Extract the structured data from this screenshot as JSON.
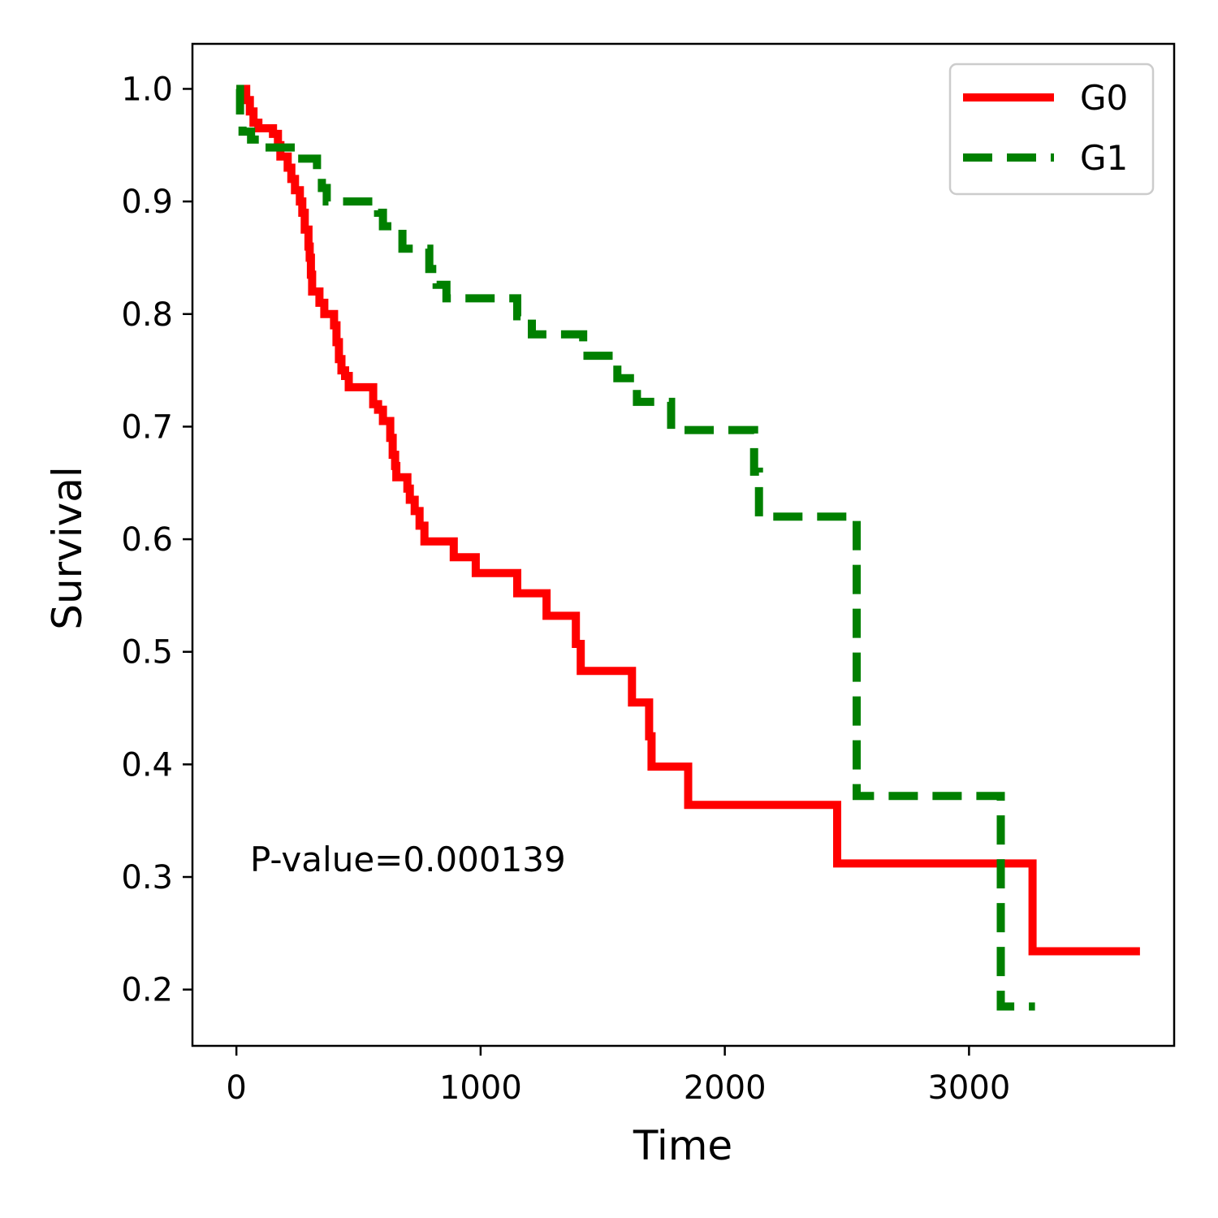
{
  "chart_data": {
    "type": "line",
    "title": "",
    "xlabel": "Time",
    "ylabel": "Survival",
    "xlim": [
      -180,
      3840
    ],
    "ylim": [
      0.15,
      1.04
    ],
    "x_ticks": [
      0,
      1000,
      2000,
      3000
    ],
    "x_tick_labels": [
      "0",
      "1000",
      "2000",
      "3000"
    ],
    "y_ticks": [
      0.2,
      0.3,
      0.4,
      0.5,
      0.6,
      0.7,
      0.8,
      0.9,
      1.0
    ],
    "y_tick_labels": [
      "0.2",
      "0.3",
      "0.4",
      "0.5",
      "0.6",
      "0.7",
      "0.8",
      "0.9",
      "1.0"
    ],
    "grid": false,
    "legend_position": "top-right",
    "annotation": "P-value=0.000139",
    "series": [
      {
        "name": "G0",
        "color": "#ff0000",
        "dashed": false,
        "steps": [
          [
            0,
            1.0
          ],
          [
            40,
            0.99
          ],
          [
            55,
            0.98
          ],
          [
            70,
            0.97
          ],
          [
            90,
            0.965
          ],
          [
            150,
            0.96
          ],
          [
            170,
            0.95
          ],
          [
            180,
            0.94
          ],
          [
            210,
            0.93
          ],
          [
            225,
            0.92
          ],
          [
            240,
            0.91
          ],
          [
            260,
            0.9
          ],
          [
            270,
            0.89
          ],
          [
            280,
            0.875
          ],
          [
            295,
            0.86
          ],
          [
            300,
            0.85
          ],
          [
            305,
            0.835
          ],
          [
            310,
            0.82
          ],
          [
            340,
            0.81
          ],
          [
            360,
            0.8
          ],
          [
            400,
            0.79
          ],
          [
            410,
            0.775
          ],
          [
            420,
            0.76
          ],
          [
            430,
            0.75
          ],
          [
            445,
            0.745
          ],
          [
            460,
            0.735
          ],
          [
            560,
            0.72
          ],
          [
            580,
            0.715
          ],
          [
            600,
            0.705
          ],
          [
            630,
            0.69
          ],
          [
            640,
            0.675
          ],
          [
            650,
            0.665
          ],
          [
            655,
            0.655
          ],
          [
            700,
            0.645
          ],
          [
            710,
            0.635
          ],
          [
            730,
            0.625
          ],
          [
            750,
            0.612
          ],
          [
            770,
            0.598
          ],
          [
            890,
            0.584
          ],
          [
            980,
            0.57
          ],
          [
            1150,
            0.552
          ],
          [
            1270,
            0.532
          ],
          [
            1390,
            0.507
          ],
          [
            1410,
            0.483
          ],
          [
            1620,
            0.455
          ],
          [
            1690,
            0.425
          ],
          [
            1700,
            0.398
          ],
          [
            1850,
            0.364
          ],
          [
            2460,
            0.312
          ],
          [
            3260,
            0.234
          ],
          [
            3700,
            0.234
          ]
        ]
      },
      {
        "name": "G1",
        "color": "#008000",
        "dashed": true,
        "steps": [
          [
            0,
            1.0
          ],
          [
            15,
            0.975
          ],
          [
            25,
            0.962
          ],
          [
            60,
            0.955
          ],
          [
            100,
            0.948
          ],
          [
            240,
            0.938
          ],
          [
            330,
            0.925
          ],
          [
            350,
            0.912
          ],
          [
            370,
            0.9
          ],
          [
            580,
            0.89
          ],
          [
            600,
            0.878
          ],
          [
            680,
            0.858
          ],
          [
            790,
            0.84
          ],
          [
            820,
            0.826
          ],
          [
            860,
            0.814
          ],
          [
            1150,
            0.798
          ],
          [
            1210,
            0.782
          ],
          [
            1420,
            0.763
          ],
          [
            1560,
            0.743
          ],
          [
            1640,
            0.722
          ],
          [
            1780,
            0.697
          ],
          [
            2120,
            0.66
          ],
          [
            2140,
            0.62
          ],
          [
            2540,
            0.372
          ],
          [
            3130,
            0.185
          ],
          [
            3270,
            0.185
          ]
        ]
      }
    ]
  }
}
